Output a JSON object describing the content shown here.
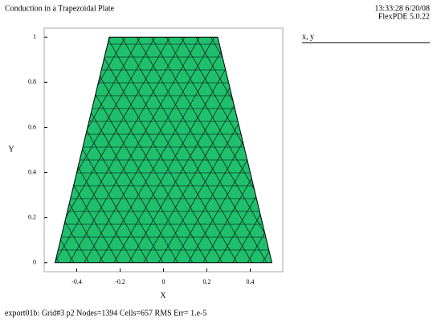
{
  "chart_data": {
    "type": "mesh",
    "title": "Conduction in a Trapezoidal Plate",
    "timestamp": "13:33:28 6/20/08",
    "software": "FlexPDE 5.0.22",
    "legend": "x, y",
    "xlabel": "X",
    "ylabel": "Y",
    "footer": "export01b:  Grid#3  p2  Nodes=1394 Cells=657 RMS Err= 1.e-5",
    "x": [
      -0.5,
      0.5,
      0.25,
      -0.25
    ],
    "y": [
      0,
      0,
      1,
      1
    ],
    "color": "#1fbf6e",
    "xlim": [
      -0.55,
      0.55
    ],
    "ylim": [
      -0.04,
      1.04
    ],
    "xticks": [
      -0.4,
      -0.2,
      0,
      0.2,
      0.4
    ],
    "yticks": [
      0,
      0.2,
      0.4,
      0.6,
      0.8,
      1
    ]
  }
}
